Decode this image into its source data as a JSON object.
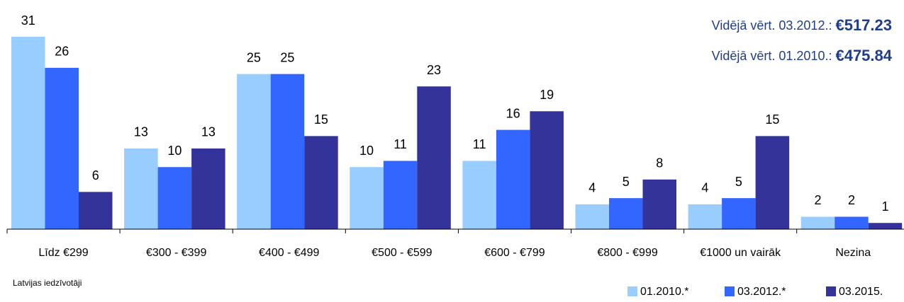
{
  "chart_data": {
    "type": "bar",
    "categories": [
      "Līdz €299",
      "€300 - €399",
      "€400 - €499",
      "€500 - €599",
      "€600 - €799",
      "€800 - €999",
      "€1000 un vairāk",
      "Nezina"
    ],
    "series": [
      {
        "name": "01.2010.*",
        "color": "#99ccff",
        "values": [
          31,
          13,
          25,
          10,
          11,
          4,
          4,
          2
        ]
      },
      {
        "name": "03.2012.*",
        "color": "#3366ff",
        "values": [
          26,
          10,
          25,
          11,
          16,
          5,
          5,
          2
        ]
      },
      {
        "name": "03.2015.",
        "color": "#333399",
        "values": [
          6,
          13,
          15,
          23,
          19,
          8,
          15,
          1
        ]
      }
    ],
    "ylim": [
      0,
      31
    ],
    "annotations": [
      {
        "label": "Vidējā vērt. 03.2012.: ",
        "value": "€517.23"
      },
      {
        "label": "Vidējā vērt. 01.2010.: ",
        "value": "€475.84"
      }
    ],
    "note": "Latvijas iedzīvotāji",
    "legend": "bottom-right"
  }
}
